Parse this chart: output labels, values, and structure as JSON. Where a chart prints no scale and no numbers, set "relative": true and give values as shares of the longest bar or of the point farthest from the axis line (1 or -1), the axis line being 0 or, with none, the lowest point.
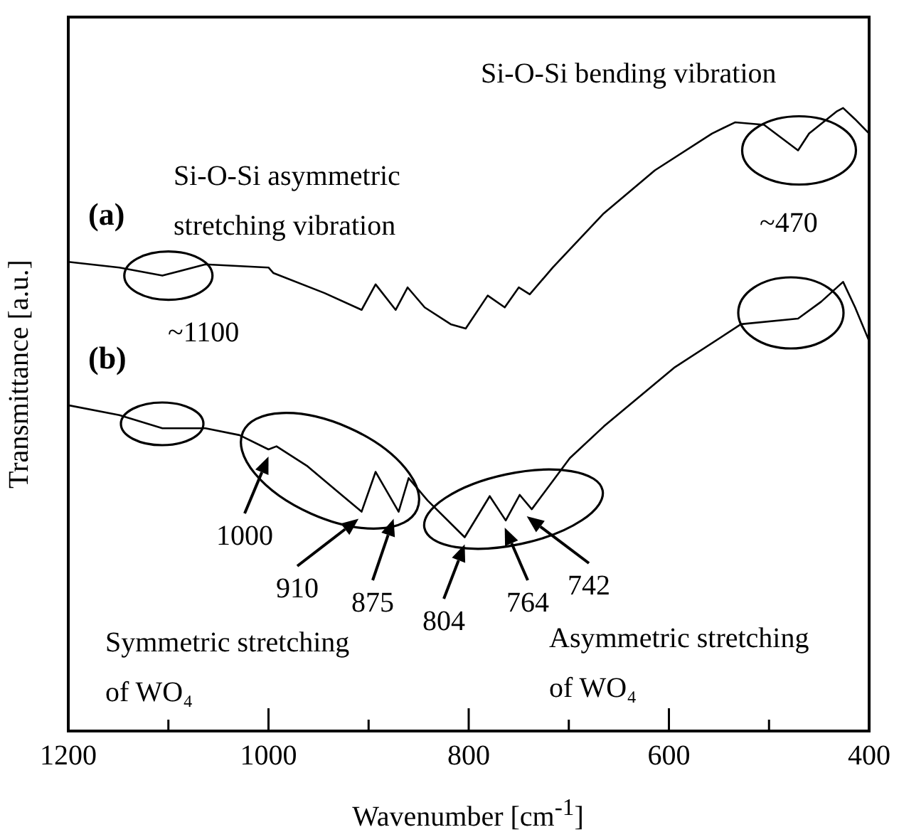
{
  "chart_data": {
    "type": "line",
    "relative": true,
    "marker": "none",
    "legend": false,
    "grid": false,
    "xlabel": "Wavenumber [cm$^{-1}$]",
    "ylabel": "Transmittance [a.u.]",
    "xlim": [
      1200,
      400
    ],
    "xticks": [
      1200,
      {
        "value": 1100,
        "label": null
      },
      1000,
      {
        "value": 900,
        "label": null
      },
      800,
      {
        "value": 700,
        "label": null
      },
      600,
      {
        "value": 500,
        "label": null
      },
      400
    ],
    "tick_labels": "x",
    "series": [
      {
        "name": "(a)",
        "color": "#000000",
        "x": [
          1200,
          1149,
          1106,
          1063,
          1000,
          995,
          944,
          907,
          893,
          873,
          861,
          844,
          818,
          803,
          781,
          764,
          750,
          739,
          716,
          665,
          614,
          557,
          534,
          505,
          471,
          460,
          432,
          426,
          414,
          400
        ],
        "values": [
          0.753,
          0.744,
          0.731,
          0.749,
          0.744,
          0.735,
          0.703,
          0.676,
          0.717,
          0.676,
          0.712,
          0.68,
          0.653,
          0.646,
          0.699,
          0.68,
          0.712,
          0.701,
          0.744,
          0.831,
          0.9,
          0.959,
          0.977,
          0.973,
          0.932,
          0.959,
          0.995,
          1.0,
          0.982,
          0.959
        ]
      },
      {
        "name": "(b)",
        "color": "#000000",
        "x": [
          1200,
          1149,
          1106,
          1063,
          1029,
          1000,
          992,
          961,
          927,
          907,
          893,
          870,
          860,
          841,
          804,
          779,
          763,
          749,
          737,
          699,
          665,
          594,
          528,
          471,
          448,
          426,
          414,
          400
        ],
        "values": [
          0.523,
          0.507,
          0.486,
          0.486,
          0.475,
          0.452,
          0.457,
          0.425,
          0.379,
          0.352,
          0.416,
          0.352,
          0.406,
          0.37,
          0.311,
          0.377,
          0.338,
          0.379,
          0.356,
          0.438,
          0.489,
          0.584,
          0.653,
          0.662,
          0.689,
          0.721,
          0.68,
          0.626
        ]
      }
    ],
    "annotations": [
      "Si-O-Si asymmetric\nstretching vibration",
      {
        "text": "~1100",
        "x": 1100,
        "y": 0.731
      },
      "Si-O-Si bending vibration",
      {
        "text": "~470",
        "x": 470,
        "y": 0.932
      },
      {
        "text": "1000",
        "x": 1000,
        "y": 0.452
      },
      {
        "text": "910",
        "x": 910,
        "y": 0.352
      },
      {
        "text": "875",
        "x": 875,
        "y": 0.352
      },
      {
        "text": "804",
        "x": 804,
        "y": 0.311
      },
      {
        "text": "764",
        "x": 764,
        "y": 0.338
      },
      {
        "text": "742",
        "x": 742,
        "y": 0.356
      },
      "Symmetric stretching\nof WO₄",
      "Asymmetric stretching\nof WO₄"
    ]
  }
}
